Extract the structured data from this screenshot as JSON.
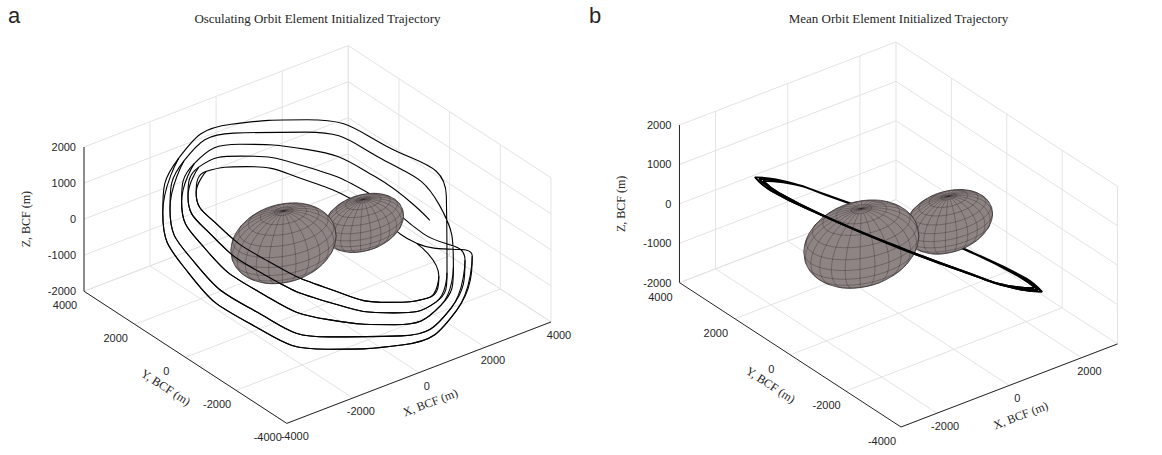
{
  "chart_data": [
    {
      "type": "line3d",
      "panel": "a",
      "title": "Osculating Orbit Element Initialized Trajectory",
      "xlabel": "X, BCF (m)",
      "ylabel": "Y, BCF (m)",
      "zlabel": "Z, BCF (m)",
      "xlim": [
        -4000,
        4000
      ],
      "ylim": [
        -4000,
        4000
      ],
      "zlim": [
        -2000,
        2000
      ],
      "xticks": [
        -4000,
        -2000,
        0,
        2000,
        4000
      ],
      "yticks": [
        -4000,
        -2000,
        0,
        2000,
        4000
      ],
      "zticks": [
        -2000,
        -1000,
        0,
        1000,
        2000
      ],
      "grid": true,
      "series": [
        {
          "color": "#000000",
          "x": [
            3400,
            2940,
            1700,
            0,
            -1700,
            -2940,
            -3400,
            -2940,
            -1700,
            0,
            1700,
            2940,
            3700,
            3200,
            1850,
            0,
            -1850,
            -3200,
            -3700,
            -3200,
            -1850,
            0,
            1850,
            3200,
            3200,
            2770,
            1600,
            0,
            -1600,
            -2770,
            -3200,
            -2770,
            -1600,
            0,
            1600,
            2770,
            3900,
            3380,
            1950,
            0,
            -1950,
            -3380,
            -3900,
            -3380,
            -1950,
            0,
            1950,
            3380,
            3000,
            2600,
            1500,
            0,
            -1500,
            -2600,
            -3000,
            -2600,
            -1500,
            0,
            1500,
            2600,
            3000
          ],
          "y": [
            0,
            1530,
            2650,
            3060,
            2650,
            1530,
            0,
            -1530,
            -2650,
            -3060,
            -2650,
            -1530,
            0,
            1650,
            2860,
            3300,
            2860,
            1650,
            0,
            -1650,
            -2860,
            -3300,
            -2860,
            -1650,
            0,
            1500,
            2600,
            3000,
            2600,
            1500,
            0,
            -1500,
            -2600,
            -3000,
            -2600,
            -1500,
            0,
            1700,
            2940,
            3400,
            2940,
            1700,
            0,
            -1700,
            -2940,
            -3400,
            -2940,
            -1700,
            0,
            1400,
            2430,
            2800,
            2430,
            1400,
            0,
            -1400,
            -2430,
            -2800,
            -2430,
            -1400,
            0
          ],
          "z": [
            -800,
            -140,
            550,
            1100,
            1350,
            1240,
            800,
            140,
            -550,
            -1100,
            -1350,
            -1240,
            -500,
            220,
            880,
            1300,
            1380,
            1080,
            500,
            -220,
            -880,
            -1300,
            -1380,
            -1080,
            -1100,
            -550,
            140,
            800,
            1240,
            1350,
            1100,
            550,
            -140,
            -800,
            -1240,
            -1350,
            -300,
            490,
            1150,
            1500,
            1450,
            1010,
            300,
            -490,
            -1150,
            -1500,
            -1450,
            -1010,
            -1300,
            -830,
            -130,
            600,
            1170,
            1430,
            1300,
            830,
            130,
            -600,
            -1170,
            -1430,
            -1300
          ]
        }
      ]
    },
    {
      "type": "line3d",
      "panel": "b",
      "title": "Mean Orbit Element Initialized Trajectory",
      "xlabel": "X, BCF (m)",
      "ylabel": "Y, BCF (m)",
      "zlabel": "Z, BCF (m)",
      "xlim": [
        -3000,
        3000
      ],
      "ylim": [
        -4000,
        4000
      ],
      "zlim": [
        -2000,
        2000
      ],
      "xticks": [
        -2000,
        0,
        2000
      ],
      "yticks": [
        -4000,
        -2000,
        0,
        2000,
        4000
      ],
      "zticks": [
        -2000,
        -1000,
        0,
        1000,
        2000
      ],
      "grid": true,
      "series": [
        {
          "color": "#000000",
          "x": [
            2000,
            820,
            -590,
            -1830,
            -2590,
            -2650,
            -2000,
            -820,
            590,
            1830,
            2590,
            2650,
            2060,
            840,
            -610,
            -1890,
            -2670,
            -2730,
            -2060,
            -840,
            610,
            1890,
            2670,
            2730,
            2120,
            870,
            -620,
            -1950,
            -2750,
            -2820,
            -2120,
            -870,
            620,
            1950,
            2750,
            2820,
            2120
          ],
          "y": [
            -2280,
            -3100,
            -3080,
            -2240,
            -800,
            860,
            2280,
            3100,
            3080,
            2240,
            800,
            -860,
            -2350,
            -3190,
            -3180,
            -2310,
            -820,
            880,
            2350,
            3190,
            3180,
            2310,
            820,
            -880,
            -2420,
            -3290,
            -3270,
            -2380,
            -850,
            910,
            2420,
            3290,
            3270,
            2380,
            850,
            -910,
            -2420
          ],
          "z": [
            -1020,
            -190,
            700,
            1400,
            1720,
            1590,
            1020,
            190,
            -700,
            -1400,
            -1720,
            -1590,
            -1060,
            -200,
            720,
            1440,
            1770,
            1640,
            1060,
            200,
            -720,
            -1440,
            -1770,
            -1640,
            -1090,
            -200,
            740,
            1480,
            1830,
            1680,
            1090,
            200,
            -740,
            -1480,
            -1830,
            -1680,
            -1090
          ]
        }
      ]
    }
  ]
}
